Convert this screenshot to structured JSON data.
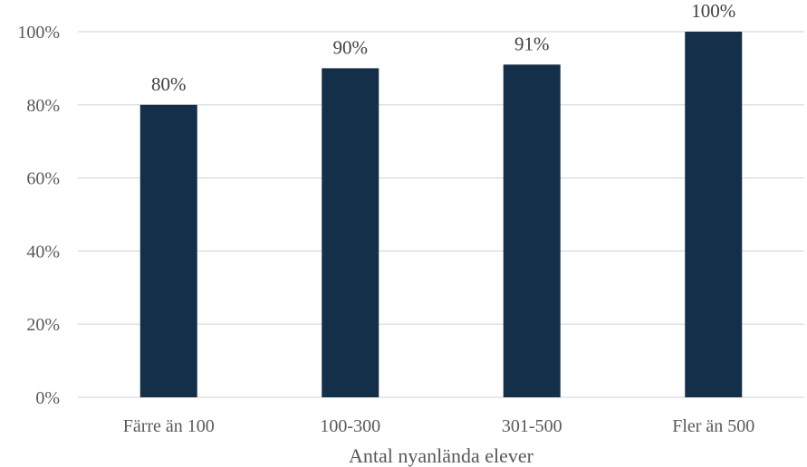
{
  "chart_data": {
    "type": "bar",
    "categories": [
      "Färre än 100",
      "100-300",
      "301-500",
      "Fler än 500"
    ],
    "values": [
      80,
      90,
      91,
      100
    ],
    "value_labels": [
      "80%",
      "90%",
      "91%",
      "100%"
    ],
    "y_tick_labels": [
      "0%",
      "20%",
      "40%",
      "60%",
      "80%",
      "100%"
    ],
    "ylim": [
      0,
      100
    ],
    "xlabel": "Antal nyanlända elever",
    "ylabel": "",
    "title": "",
    "grid": true,
    "legend": "none",
    "colors": {
      "bar": "#142f49",
      "grid": "#d9d9d9",
      "text": "#595959"
    }
  }
}
